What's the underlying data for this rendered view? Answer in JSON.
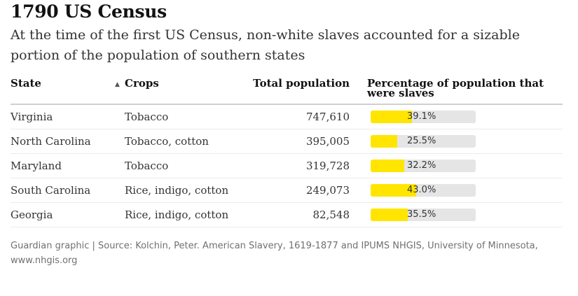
{
  "title": "1790 US Census",
  "subtitle": "At the time of the first US Census, non-white slaves accounted for a sizable portion of the population of southern states",
  "source": "Guardian graphic | Source: Kolchin, Peter. American Slavery, 1619-1877 and IPUMS NHGIS, University of Minnesota, www.nhgis.org",
  "colors": {
    "bar_fill": "#ffe500",
    "bar_track": "#e5e5e5"
  },
  "chart_data": {
    "type": "table",
    "title": "1790 US Census",
    "columns": [
      "State",
      "Crops",
      "Total population",
      "Percentage of population that were slaves"
    ],
    "sorted_column": "Crops",
    "sort_direction": "ascending",
    "rows": [
      {
        "state": "Virginia",
        "crops": "Tobacco",
        "total_population": "747,610",
        "percentage": 39.1,
        "percentage_label": "39.1%"
      },
      {
        "state": "North Carolina",
        "crops": "Tobacco, cotton",
        "total_population": "395,005",
        "percentage": 25.5,
        "percentage_label": "25.5%"
      },
      {
        "state": "Maryland",
        "crops": "Tobacco",
        "total_population": "319,728",
        "percentage": 32.2,
        "percentage_label": "32.2%"
      },
      {
        "state": "South Carolina",
        "crops": "Rice, indigo, cotton",
        "total_population": "249,073",
        "percentage": 43.0,
        "percentage_label": "43.0%"
      },
      {
        "state": "Georgia",
        "crops": "Rice, indigo, cotton",
        "total_population": "82,548",
        "percentage": 35.5,
        "percentage_label": "35.5%"
      }
    ],
    "bar_max": 100
  }
}
